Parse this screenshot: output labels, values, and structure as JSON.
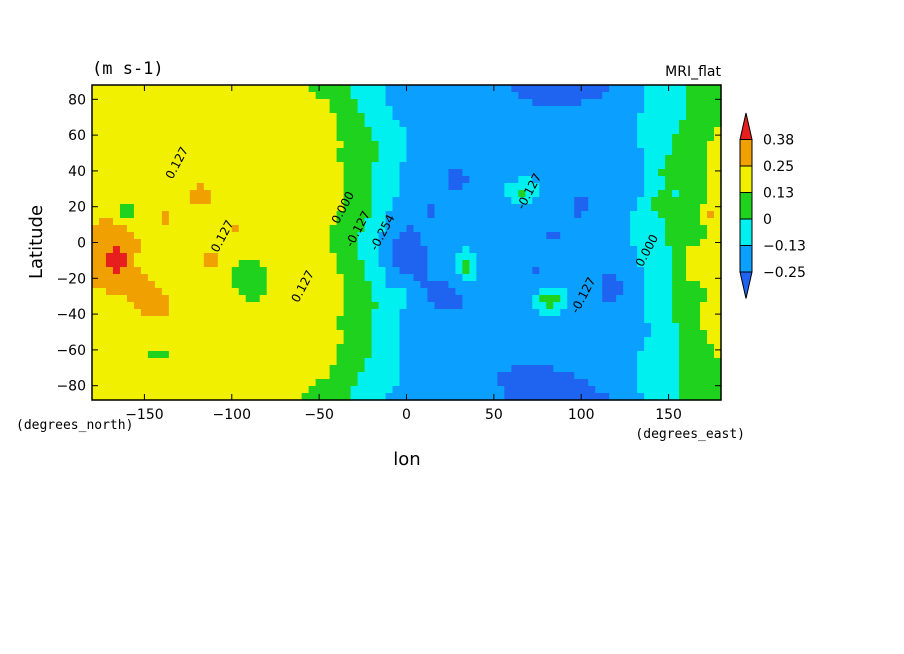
{
  "chart_data": {
    "type": "heatmap",
    "title": "",
    "units_label": "(m s-1)",
    "model_label": "MRI_flat",
    "xlabel": "lon",
    "ylabel": "Latitude",
    "x_units": "(degrees_east)",
    "y_units": "(degrees_north)",
    "xlim": [
      -180,
      180
    ],
    "ylim": [
      -88,
      88
    ],
    "x_ticks": [
      -150,
      -100,
      -50,
      0,
      50,
      100,
      150
    ],
    "y_ticks": [
      80,
      60,
      40,
      20,
      0,
      -20,
      -40,
      -60,
      -80
    ],
    "colorbar": {
      "levels": [
        -0.25,
        -0.13,
        0,
        0.13,
        0.25,
        0.38
      ],
      "labels": [
        "-0.25",
        "-0.13",
        "0",
        "0.13",
        "0.25",
        "0.38"
      ],
      "colors": [
        "#1e64f0",
        "#0ba0ff",
        "#00f0f0",
        "#1ed21e",
        "#f0f000",
        "#f0a000",
        "#e61e1e"
      ]
    },
    "contour_labels": [
      {
        "text": "0.127",
        "lon": -134,
        "lat": 35
      },
      {
        "text": "0.127",
        "lon": -108,
        "lat": -6
      },
      {
        "text": "0.127",
        "lon": -62,
        "lat": -34
      },
      {
        "text": "0.000",
        "lon": -39,
        "lat": 10
      },
      {
        "text": "-0.127",
        "lon": -31,
        "lat": -3
      },
      {
        "text": "-0.254",
        "lon": -17,
        "lat": -5
      },
      {
        "text": "-0.127",
        "lon": 67,
        "lat": 18
      },
      {
        "text": "-0.127",
        "lon": 98,
        "lat": -40
      },
      {
        "text": "0.000",
        "lon": 135,
        "lat": -14
      }
    ],
    "field_features": [
      {
        "lon": -165,
        "lat": -10,
        "value": 0.42,
        "rx": 14,
        "ry": 16
      },
      {
        "lon": -148,
        "lat": -30,
        "value": 0.28,
        "rx": 10,
        "ry": 10
      },
      {
        "lon": -138,
        "lat": 12,
        "value": 0.27,
        "rx": 7,
        "ry": 7
      },
      {
        "lon": -118,
        "lat": 26,
        "value": 0.28,
        "rx": 10,
        "ry": 9
      },
      {
        "lon": -112,
        "lat": -10,
        "value": 0.27,
        "rx": 8,
        "ry": 9
      },
      {
        "lon": -98,
        "lat": 8,
        "value": 0.26,
        "rx": 6,
        "ry": 7
      },
      {
        "lon": -68,
        "lat": -15,
        "value": 0.2,
        "rx": 12,
        "ry": 16
      },
      {
        "lon": -152,
        "lat": -10,
        "value": 0.05,
        "rx": 4,
        "ry": 5
      },
      {
        "lon": -160,
        "lat": 18,
        "value": 0.05,
        "rx": 5,
        "ry": 7
      },
      {
        "lon": -90,
        "lat": -18,
        "value": 0.05,
        "rx": 11,
        "ry": 14
      },
      {
        "lon": -142,
        "lat": -62,
        "value": 0.06,
        "rx": 8,
        "ry": 4
      },
      {
        "lon": 0,
        "lat": -5,
        "value": -0.29,
        "rx": 16,
        "ry": 28
      },
      {
        "lon": 25,
        "lat": -30,
        "value": -0.27,
        "rx": 15,
        "ry": 12
      },
      {
        "lon": 30,
        "lat": 36,
        "value": -0.27,
        "rx": 8,
        "ry": 6
      },
      {
        "lon": 100,
        "lat": 22,
        "value": -0.27,
        "rx": 10,
        "ry": 12
      },
      {
        "lon": 118,
        "lat": -25,
        "value": -0.27,
        "rx": 14,
        "ry": 14
      },
      {
        "lon": 15,
        "lat": 16,
        "value": -0.26,
        "rx": 5,
        "ry": 6
      },
      {
        "lon": 74,
        "lat": -15,
        "value": -0.26,
        "rx": 4,
        "ry": 4
      },
      {
        "lon": 34,
        "lat": -14,
        "value": 0.05,
        "rx": 6,
        "ry": 10
      },
      {
        "lon": -2,
        "lat": -28,
        "value": 0.05,
        "rx": 4,
        "ry": 6
      },
      {
        "lon": 66,
        "lat": 28,
        "value": 0.05,
        "rx": 9,
        "ry": 7
      },
      {
        "lon": 82,
        "lat": -32,
        "value": 0.05,
        "rx": 10,
        "ry": 8
      },
      {
        "lon": 145,
        "lat": 22,
        "value": 0.05,
        "rx": 7,
        "ry": 10
      },
      {
        "lon": 168,
        "lat": -12,
        "value": 0.25,
        "rx": 12,
        "ry": 12
      },
      {
        "lon": 175,
        "lat": 16,
        "value": 0.3,
        "rx": 5,
        "ry": 7
      },
      {
        "lon": 155,
        "lat": 40,
        "value": 0.05,
        "rx": 15,
        "ry": 10
      }
    ]
  }
}
